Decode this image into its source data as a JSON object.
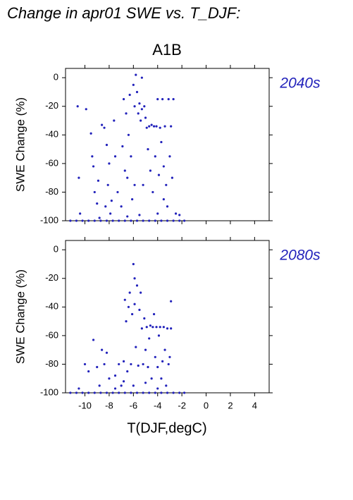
{
  "title": "Change in apr01 SWE vs. T_DJF:",
  "subtitle": "A1B",
  "chart_data": [
    {
      "type": "scatter",
      "title": "2040s",
      "ylabel": "SWE Change (%)",
      "color": "#2222bb",
      "xlim": [
        -11.6,
        5.2
      ],
      "ylim": [
        -100,
        6.5
      ],
      "xticks": [
        -10,
        -8,
        -6,
        -4,
        -2,
        0,
        2,
        4
      ],
      "yticks": [
        -100,
        -80,
        -60,
        -40,
        -20,
        0
      ],
      "xtick_labels": false,
      "x": [
        -10.6,
        -10.5,
        -10.4,
        -9.9,
        -9.5,
        -9.4,
        -9.3,
        -9.2,
        -9.0,
        -8.9,
        -8.8,
        -8.6,
        -8.4,
        -8.2,
        -8.0,
        -8.1,
        -8.3,
        -7.9,
        -7.6,
        -7.5,
        -7.3,
        -7.0,
        -6.9,
        -6.8,
        -6.7,
        -6.6,
        -6.5,
        -6.4,
        -6.3,
        -6.2,
        -6.1,
        -6.0,
        -5.9,
        -5.9,
        -5.8,
        -5.7,
        -5.6,
        -5.5,
        -5.4,
        -5.3,
        -5.3,
        -5.2,
        -5.1,
        -5.0,
        -4.9,
        -4.8,
        -4.7,
        -4.6,
        -4.5,
        -4.4,
        -4.3,
        -4.2,
        -4.1,
        -4.0,
        -3.9,
        -3.8,
        -3.7,
        -3.6,
        -3.5,
        -3.4,
        -3.3,
        -3.2,
        -3.1,
        -3.0,
        -2.9,
        -2.8,
        -2.7,
        -3.5,
        -4.0,
        -2.5,
        -2.2,
        -6.5,
        -5.5,
        -7.8,
        -11.2,
        -10.7,
        -10.2,
        -9.7,
        -9.2,
        -8.7,
        -8.2,
        -7.7,
        -7.2,
        -6.7,
        -6.2,
        -5.7,
        -5.2,
        -4.7,
        -4.2,
        -3.7,
        -3.2,
        -2.7,
        -2.2,
        -1.8
      ],
      "y": [
        -20,
        -70,
        -95,
        -22,
        -39,
        -55,
        -62,
        -80,
        -88,
        -72,
        -98,
        -33,
        -35,
        -47,
        -60,
        -75,
        -90,
        -95,
        -30,
        -55,
        -80,
        -90,
        -48,
        -15,
        -65,
        -25,
        -70,
        -40,
        -12,
        -55,
        -85,
        -5,
        -20,
        -75,
        2,
        -10,
        -25,
        -18,
        -30,
        0,
        -22,
        -75,
        -20,
        -28,
        -35,
        -50,
        -34,
        -65,
        -33,
        -80,
        -34,
        -55,
        -34,
        -15,
        -68,
        -35,
        -45,
        -15,
        -62,
        -34,
        -75,
        -90,
        -15,
        -55,
        -34,
        -70,
        -15,
        -85,
        -95,
        -95,
        -96,
        -97,
        -96,
        -86,
        -100,
        -100,
        -100,
        -100,
        -100,
        -100,
        -100,
        -100,
        -100,
        -100,
        -100,
        -100,
        -100,
        -100,
        -100,
        -100,
        -100,
        -100,
        -100,
        -100
      ]
    },
    {
      "type": "scatter",
      "title": "2080s",
      "ylabel": "SWE Change (%)",
      "xlabel": "T(DJF,degC)",
      "color": "#2222bb",
      "xlim": [
        -11.6,
        5.2
      ],
      "ylim": [
        -100,
        6.5
      ],
      "xticks": [
        -10,
        -8,
        -6,
        -4,
        -2,
        0,
        2,
        4
      ],
      "yticks": [
        -100,
        -80,
        -60,
        -40,
        -20,
        0
      ],
      "xtick_labels": true,
      "x": [
        -10.5,
        -10.0,
        -9.7,
        -9.3,
        -9.0,
        -8.8,
        -8.6,
        -8.4,
        -8.2,
        -8.0,
        -7.5,
        -7.2,
        -7.0,
        -6.8,
        -6.7,
        -6.6,
        -6.5,
        -6.4,
        -6.3,
        -6.2,
        -6.1,
        -6.0,
        -5.9,
        -5.9,
        -5.8,
        -5.7,
        -5.6,
        -5.5,
        -5.4,
        -5.3,
        -5.2,
        -5.1,
        -5.0,
        -4.9,
        -4.8,
        -4.7,
        -4.6,
        -4.5,
        -4.4,
        -4.3,
        -4.2,
        -4.1,
        -4.0,
        -3.9,
        -3.8,
        -3.7,
        -3.6,
        -3.5,
        -3.4,
        -3.3,
        -3.2,
        -3.1,
        -3.0,
        -2.9,
        -2.9,
        -6.8,
        -6.0,
        -5.0,
        -4.0,
        -7.5,
        -11.2,
        -10.7,
        -10.2,
        -9.7,
        -9.2,
        -8.7,
        -8.2,
        -7.7,
        -7.2,
        -6.7,
        -6.2,
        -5.7,
        -5.2,
        -4.7,
        -4.2,
        -3.7,
        -3.2,
        -2.7,
        -2.2,
        -1.8
      ],
      "y": [
        -97,
        -80,
        -85,
        -63,
        -82,
        -95,
        -70,
        -80,
        -72,
        -90,
        -97,
        -80,
        -95,
        -78,
        -35,
        -50,
        -85,
        -40,
        -30,
        -80,
        -45,
        -10,
        -20,
        -38,
        -68,
        -25,
        -81,
        -42,
        -30,
        -55,
        -80,
        -48,
        -70,
        -54,
        -82,
        -62,
        -53,
        -90,
        -54,
        -45,
        -75,
        -54,
        -82,
        -60,
        -54,
        -90,
        -78,
        -54,
        -70,
        -95,
        -55,
        -80,
        -75,
        -36,
        -55,
        -92,
        -95,
        -93,
        -97,
        -88,
        -100,
        -100,
        -100,
        -100,
        -100,
        -100,
        -100,
        -100,
        -100,
        -100,
        -100,
        -100,
        -100,
        -100,
        -100,
        -100,
        -100,
        -100,
        -100,
        -100
      ]
    }
  ]
}
